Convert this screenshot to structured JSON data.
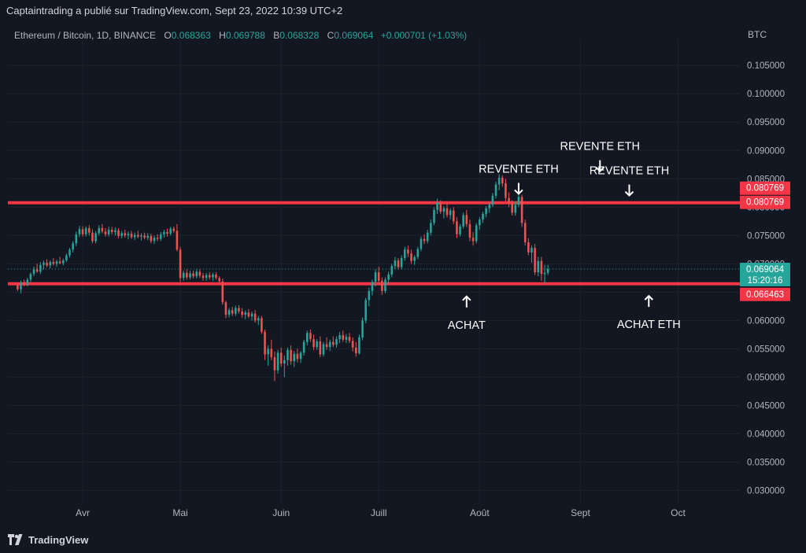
{
  "publish_line": "Captaintrading a publié sur TradingView.com, Sept 23, 2022 10:39 UTC+2",
  "header": {
    "symbol": "Ethereum / Bitcoin, 1D, BINANCE",
    "open_label": "O",
    "open": "0.068363",
    "high_label": "H",
    "high": "0.069788",
    "low_label": "B",
    "low": "0.068328",
    "close_label": "C",
    "close": "0.069064",
    "change": "+0.000701 (+1.03%)"
  },
  "currency": "BTC",
  "brand": "TradingView",
  "colors": {
    "up": "#26a69a",
    "down": "#ef5350",
    "level": "#f23645",
    "background": "#131722",
    "grid": "#1e222d",
    "text": "#b2b5be"
  },
  "chart_data": {
    "type": "candlestick",
    "x_ticks": [
      "Avr",
      "Mai",
      "Juin",
      "Juill",
      "Août",
      "Sept",
      "Oct"
    ],
    "y_ticks": [
      "0.105000",
      "0.100000",
      "0.095000",
      "0.090000",
      "0.085000",
      "0.080000",
      "0.075000",
      "0.070000",
      "0.065000",
      "0.060000",
      "0.055000",
      "0.050000",
      "0.045000",
      "0.040000",
      "0.035000",
      "0.030000"
    ],
    "ylim": [
      0.0277,
      0.1085
    ],
    "x_range": [
      "2022-03-09",
      "2022-10-20"
    ],
    "levels": [
      {
        "value": 0.080769,
        "label": "0.080769"
      },
      {
        "value": 0.066463,
        "label": "0.066463"
      }
    ],
    "level_label_extra": "0.080769",
    "last_price": {
      "value": 0.069064,
      "label": "0.069064",
      "countdown": "15:20:16"
    },
    "annotations": [
      {
        "text": "REVENTE ETH",
        "arrow": "down",
        "date": "2022-08-13",
        "price": 0.0815
      },
      {
        "text": "REVENTE ETH",
        "arrow": "down",
        "date": "2022-09-07",
        "price": 0.0855
      },
      {
        "text": "REVENTE ETH",
        "arrow": "down",
        "date": "2022-09-16",
        "price": 0.0812
      },
      {
        "text": "ACHAT",
        "arrow": "up",
        "date": "2022-07-28",
        "price": 0.0659
      },
      {
        "text": "ACHAT ETH",
        "arrow": "up",
        "date": "2022-09-22",
        "price": 0.066
      }
    ],
    "series": [
      {
        "start_date": "2022-03-12",
        "ohlc": [
          [
            0.0662,
            0.0665,
            0.0652,
            0.0655
          ],
          [
            0.0655,
            0.067,
            0.0648,
            0.0667
          ],
          [
            0.0667,
            0.0672,
            0.066,
            0.0663
          ],
          [
            0.0663,
            0.0675,
            0.066,
            0.0672
          ],
          [
            0.0672,
            0.0685,
            0.0668,
            0.0682
          ],
          [
            0.0682,
            0.0695,
            0.0678,
            0.069
          ],
          [
            0.069,
            0.07,
            0.0684,
            0.0686
          ],
          [
            0.0686,
            0.0703,
            0.0682,
            0.0698
          ],
          [
            0.0698,
            0.0706,
            0.069,
            0.0702
          ],
          [
            0.0702,
            0.0708,
            0.0694,
            0.0697
          ],
          [
            0.0697,
            0.0706,
            0.0692,
            0.0703
          ],
          [
            0.0703,
            0.071,
            0.0697,
            0.07
          ],
          [
            0.07,
            0.0707,
            0.0695,
            0.0704
          ],
          [
            0.0704,
            0.0712,
            0.0699,
            0.0701
          ],
          [
            0.0701,
            0.0709,
            0.0697,
            0.0706
          ],
          [
            0.0706,
            0.0718,
            0.0703,
            0.0715
          ],
          [
            0.0715,
            0.0728,
            0.0711,
            0.0725
          ],
          [
            0.0725,
            0.074,
            0.072,
            0.0736
          ],
          [
            0.0736,
            0.0757,
            0.0731,
            0.0752
          ],
          [
            0.0752,
            0.0767,
            0.0747,
            0.0761
          ],
          [
            0.0761,
            0.0766,
            0.0748,
            0.0752
          ],
          [
            0.0752,
            0.0766,
            0.0748,
            0.0763
          ],
          [
            0.0763,
            0.0768,
            0.075,
            0.0755
          ],
          [
            0.0755,
            0.0761,
            0.0736,
            0.074
          ],
          [
            0.074,
            0.0758,
            0.0736,
            0.0754
          ],
          [
            0.0754,
            0.0768,
            0.075,
            0.0763
          ],
          [
            0.0763,
            0.077,
            0.0754,
            0.0757
          ],
          [
            0.0757,
            0.0763,
            0.0748,
            0.0752
          ],
          [
            0.0752,
            0.0766,
            0.0748,
            0.076
          ],
          [
            0.076,
            0.0765,
            0.0752,
            0.0756
          ],
          [
            0.0756,
            0.0764,
            0.075,
            0.0759
          ],
          [
            0.0759,
            0.0763,
            0.0745,
            0.0749
          ],
          [
            0.0749,
            0.0758,
            0.0745,
            0.0754
          ],
          [
            0.0754,
            0.076,
            0.0746,
            0.075
          ],
          [
            0.075,
            0.0757,
            0.0743,
            0.0753
          ],
          [
            0.0753,
            0.0758,
            0.0744,
            0.0747
          ],
          [
            0.0747,
            0.0755,
            0.0742,
            0.0751
          ],
          [
            0.0751,
            0.0758,
            0.0745,
            0.0748
          ],
          [
            0.0748,
            0.0754,
            0.0741,
            0.075
          ],
          [
            0.075,
            0.0755,
            0.0743,
            0.0746
          ],
          [
            0.0746,
            0.0754,
            0.0742,
            0.0749
          ],
          [
            0.0749,
            0.0753,
            0.0736,
            0.074
          ],
          [
            0.074,
            0.075,
            0.0735,
            0.0746
          ],
          [
            0.0746,
            0.0752,
            0.074,
            0.0744
          ],
          [
            0.0744,
            0.0756,
            0.074,
            0.0752
          ],
          [
            0.0752,
            0.076,
            0.0746,
            0.0756
          ],
          [
            0.0756,
            0.0762,
            0.0748,
            0.0753
          ],
          [
            0.0753,
            0.0765,
            0.075,
            0.0762
          ],
          [
            0.0762,
            0.0766,
            0.0755,
            0.0758
          ],
          [
            0.0758,
            0.077,
            0.0722,
            0.0725
          ],
          [
            0.0725,
            0.073,
            0.0668,
            0.0675
          ],
          [
            0.0675,
            0.0688,
            0.067,
            0.0684
          ],
          [
            0.0684,
            0.069,
            0.0672,
            0.0676
          ],
          [
            0.0676,
            0.0688,
            0.0672,
            0.0683
          ],
          [
            0.0683,
            0.0688,
            0.0674,
            0.0678
          ],
          [
            0.0678,
            0.069,
            0.0674,
            0.0686
          ],
          [
            0.0686,
            0.069,
            0.0675,
            0.0679
          ],
          [
            0.0679,
            0.0684,
            0.067,
            0.0675
          ],
          [
            0.0675,
            0.0684,
            0.067,
            0.068
          ],
          [
            0.068,
            0.0685,
            0.0672,
            0.0676
          ],
          [
            0.0676,
            0.0684,
            0.067,
            0.0681
          ],
          [
            0.0681,
            0.0685,
            0.0672,
            0.0675
          ],
          [
            0.0675,
            0.0678,
            0.0665,
            0.0669
          ],
          [
            0.0669,
            0.0674,
            0.0628,
            0.0632
          ],
          [
            0.0632,
            0.0635,
            0.0604,
            0.061
          ],
          [
            0.061,
            0.0622,
            0.0605,
            0.0618
          ],
          [
            0.0618,
            0.0624,
            0.0608,
            0.0612
          ],
          [
            0.0612,
            0.0626,
            0.0608,
            0.0622
          ],
          [
            0.0622,
            0.0627,
            0.0612,
            0.0616
          ],
          [
            0.0616,
            0.0622,
            0.0605,
            0.061
          ],
          [
            0.061,
            0.0618,
            0.0602,
            0.0614
          ],
          [
            0.0614,
            0.062,
            0.0604,
            0.0607
          ],
          [
            0.0607,
            0.0616,
            0.06,
            0.0612
          ],
          [
            0.0612,
            0.0618,
            0.0596,
            0.06
          ],
          [
            0.06,
            0.0608,
            0.0592,
            0.0604
          ],
          [
            0.0604,
            0.0608,
            0.0576,
            0.058
          ],
          [
            0.058,
            0.0584,
            0.053,
            0.054
          ],
          [
            0.054,
            0.0556,
            0.052,
            0.055
          ],
          [
            0.055,
            0.0566,
            0.053,
            0.0535
          ],
          [
            0.0535,
            0.0545,
            0.0493,
            0.0512
          ],
          [
            0.0512,
            0.0548,
            0.0506,
            0.0543
          ],
          [
            0.0543,
            0.0552,
            0.0518,
            0.0524
          ],
          [
            0.0524,
            0.0538,
            0.05,
            0.053
          ],
          [
            0.053,
            0.0552,
            0.052,
            0.0548
          ],
          [
            0.0548,
            0.0556,
            0.0522,
            0.0528
          ],
          [
            0.0528,
            0.0546,
            0.0518,
            0.0541
          ],
          [
            0.0541,
            0.055,
            0.0526,
            0.0532
          ],
          [
            0.0532,
            0.0546,
            0.0525,
            0.0543
          ],
          [
            0.0543,
            0.0566,
            0.0538,
            0.0562
          ],
          [
            0.0562,
            0.0582,
            0.0556,
            0.0578
          ],
          [
            0.0578,
            0.0584,
            0.0562,
            0.0567
          ],
          [
            0.0567,
            0.0575,
            0.0548,
            0.0553
          ],
          [
            0.0553,
            0.0567,
            0.0548,
            0.0563
          ],
          [
            0.0563,
            0.0572,
            0.0535,
            0.054
          ],
          [
            0.054,
            0.0562,
            0.0536,
            0.0558
          ],
          [
            0.0558,
            0.057,
            0.0548,
            0.0553
          ],
          [
            0.0553,
            0.0566,
            0.0546,
            0.0562
          ],
          [
            0.0562,
            0.0572,
            0.0553,
            0.0557
          ],
          [
            0.0557,
            0.0572,
            0.0552,
            0.0567
          ],
          [
            0.0567,
            0.058,
            0.056,
            0.0574
          ],
          [
            0.0574,
            0.0582,
            0.0562,
            0.0566
          ],
          [
            0.0566,
            0.0576,
            0.056,
            0.0571
          ],
          [
            0.0571,
            0.0578,
            0.056,
            0.0564
          ],
          [
            0.0564,
            0.057,
            0.0545,
            0.0552
          ],
          [
            0.0552,
            0.0562,
            0.0536,
            0.0542
          ],
          [
            0.0542,
            0.0575,
            0.054,
            0.057
          ],
          [
            0.057,
            0.0605,
            0.0565,
            0.06
          ],
          [
            0.06,
            0.064,
            0.0595,
            0.0636
          ],
          [
            0.0636,
            0.0658,
            0.0625,
            0.0652
          ],
          [
            0.0652,
            0.0672,
            0.0644,
            0.0668
          ],
          [
            0.0668,
            0.069,
            0.066,
            0.0685
          ],
          [
            0.0685,
            0.0695,
            0.0665,
            0.067
          ],
          [
            0.067,
            0.0676,
            0.0645,
            0.0652
          ],
          [
            0.0652,
            0.0676,
            0.0648,
            0.0672
          ],
          [
            0.0672,
            0.0686,
            0.0664,
            0.0681
          ],
          [
            0.0681,
            0.07,
            0.0676,
            0.0696
          ],
          [
            0.0696,
            0.0712,
            0.069,
            0.0706
          ],
          [
            0.0706,
            0.071,
            0.069,
            0.0694
          ],
          [
            0.0694,
            0.0715,
            0.069,
            0.071
          ],
          [
            0.071,
            0.073,
            0.0705,
            0.0725
          ],
          [
            0.0725,
            0.0732,
            0.0712,
            0.0718
          ],
          [
            0.0718,
            0.0725,
            0.07,
            0.0705
          ],
          [
            0.0705,
            0.0715,
            0.0698,
            0.0712
          ],
          [
            0.0712,
            0.073,
            0.0708,
            0.0726
          ],
          [
            0.0726,
            0.0748,
            0.0722,
            0.0744
          ],
          [
            0.0744,
            0.0752,
            0.0735,
            0.074
          ],
          [
            0.074,
            0.076,
            0.0736,
            0.0755
          ],
          [
            0.0755,
            0.0778,
            0.075,
            0.0772
          ],
          [
            0.0772,
            0.08,
            0.0768,
            0.0795
          ],
          [
            0.0795,
            0.0815,
            0.0788,
            0.0808
          ],
          [
            0.0808,
            0.0812,
            0.0788,
            0.0792
          ],
          [
            0.0792,
            0.0802,
            0.078,
            0.0798
          ],
          [
            0.0798,
            0.0806,
            0.0782,
            0.0786
          ],
          [
            0.0786,
            0.0798,
            0.0778,
            0.0794
          ],
          [
            0.0794,
            0.08,
            0.077,
            0.0775
          ],
          [
            0.0775,
            0.0782,
            0.0745,
            0.0752
          ],
          [
            0.0752,
            0.077,
            0.0748,
            0.0766
          ],
          [
            0.0766,
            0.079,
            0.0762,
            0.0786
          ],
          [
            0.0786,
            0.0795,
            0.0765,
            0.077
          ],
          [
            0.077,
            0.0778,
            0.074,
            0.0746
          ],
          [
            0.0746,
            0.0756,
            0.0732,
            0.074
          ],
          [
            0.074,
            0.0772,
            0.0736,
            0.0768
          ],
          [
            0.0768,
            0.0782,
            0.076,
            0.0778
          ],
          [
            0.0778,
            0.0792,
            0.0772,
            0.0788
          ],
          [
            0.0788,
            0.0802,
            0.0782,
            0.0798
          ],
          [
            0.0798,
            0.0808,
            0.079,
            0.0804
          ],
          [
            0.0804,
            0.0825,
            0.08,
            0.082
          ],
          [
            0.082,
            0.0845,
            0.0815,
            0.084
          ],
          [
            0.084,
            0.0858,
            0.083,
            0.0852
          ],
          [
            0.0852,
            0.0856,
            0.0836,
            0.0842
          ],
          [
            0.0842,
            0.085,
            0.081,
            0.0816
          ],
          [
            0.0816,
            0.0826,
            0.08,
            0.0808
          ],
          [
            0.0808,
            0.0812,
            0.0785,
            0.079
          ],
          [
            0.079,
            0.081,
            0.0785,
            0.0804
          ],
          [
            0.0804,
            0.0822,
            0.08,
            0.0818
          ],
          [
            0.0818,
            0.0822,
            0.0765,
            0.0772
          ],
          [
            0.0772,
            0.0778,
            0.0732,
            0.0738
          ],
          [
            0.0738,
            0.0745,
            0.0715,
            0.072
          ],
          [
            0.072,
            0.0732,
            0.0702,
            0.0728
          ],
          [
            0.0728,
            0.0735,
            0.068,
            0.0685
          ],
          [
            0.0685,
            0.0712,
            0.0678,
            0.0705
          ],
          [
            0.0705,
            0.0712,
            0.067,
            0.0682
          ],
          [
            0.0682,
            0.0698,
            0.0665,
            0.0684
          ],
          [
            0.0684,
            0.0698,
            0.068,
            0.0691
          ]
        ]
      }
    ]
  }
}
